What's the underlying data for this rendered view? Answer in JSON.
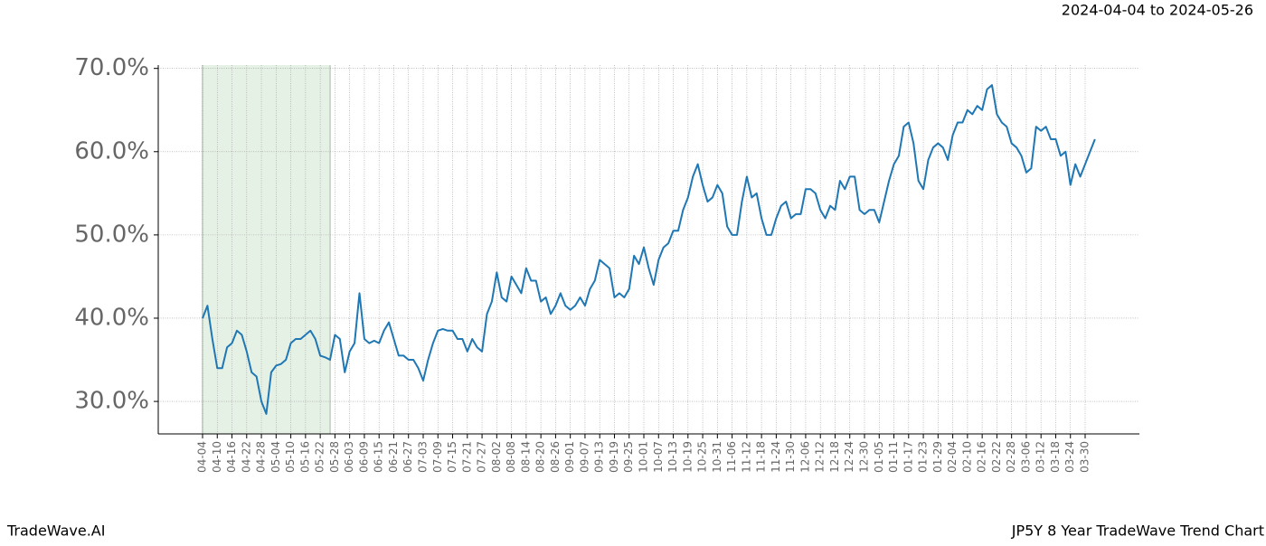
{
  "header": {
    "date_range": "2024-04-04 to 2024-05-26"
  },
  "footer": {
    "brand": "TradeWave.AI",
    "chart_name": "JP5Y 8 Year TradeWave Trend Chart"
  },
  "chart_data": {
    "type": "line",
    "categories": [
      "04-04",
      null,
      null,
      "04-10",
      null,
      null,
      "04-16",
      null,
      null,
      "04-22",
      null,
      null,
      "04-28",
      null,
      null,
      "05-04",
      null,
      null,
      "05-10",
      null,
      null,
      "05-16",
      null,
      null,
      "05-22",
      null,
      null,
      "05-28",
      null,
      null,
      "06-03",
      null,
      null,
      "06-09",
      null,
      null,
      "06-15",
      null,
      null,
      "06-21",
      null,
      null,
      "06-27",
      null,
      null,
      "07-03",
      null,
      null,
      "07-09",
      null,
      null,
      "07-15",
      null,
      null,
      "07-21",
      null,
      null,
      "07-27",
      null,
      null,
      "08-02",
      null,
      null,
      "08-08",
      null,
      null,
      "08-14",
      null,
      null,
      "08-20",
      null,
      null,
      "08-26",
      null,
      null,
      "09-01",
      null,
      null,
      "09-07",
      null,
      null,
      "09-13",
      null,
      null,
      "09-19",
      null,
      null,
      "09-25",
      null,
      null,
      "10-01",
      null,
      null,
      "10-07",
      null,
      null,
      "10-13",
      null,
      null,
      "10-19",
      null,
      null,
      "10-25",
      null,
      null,
      "10-31",
      null,
      null,
      "11-06",
      null,
      null,
      "11-12",
      null,
      null,
      "11-18",
      null,
      null,
      "11-24",
      null,
      null,
      "11-30",
      null,
      null,
      "12-06",
      null,
      null,
      "12-12",
      null,
      null,
      "12-18",
      null,
      null,
      "12-24",
      null,
      null,
      "12-30",
      null,
      null,
      "01-05",
      null,
      null,
      "01-11",
      null,
      null,
      "01-17",
      null,
      null,
      "01-23",
      null,
      null,
      "01-29",
      null,
      null,
      "02-04",
      null,
      null,
      "02-10",
      null,
      null,
      "02-16",
      null,
      null,
      "02-22",
      null,
      null,
      "02-28",
      null,
      null,
      "03-06",
      null,
      null,
      "03-12",
      null,
      null,
      "03-18",
      null,
      null,
      "03-24",
      null,
      null,
      "03-30",
      null,
      null
    ],
    "series": [
      {
        "color": "#1f77b4",
        "values": [
          40,
          41.5,
          37.5,
          34,
          34,
          36.5,
          37,
          38.5,
          38,
          36,
          33.5,
          33,
          30,
          28.5,
          33.5,
          34.3,
          34.5,
          35,
          37,
          37.5,
          37.5,
          38,
          38.5,
          37.5,
          35.5,
          35.3,
          35,
          38,
          37.5,
          33.5,
          36,
          37,
          43,
          37.5,
          37,
          37.3,
          37,
          38.5,
          39.5,
          37.5,
          35.5,
          35.5,
          35,
          35,
          34,
          32.5,
          35,
          37,
          38.5,
          38.7,
          38.5,
          38.5,
          37.5,
          37.5,
          36,
          37.5,
          36.5,
          36,
          40.5,
          42,
          45.5,
          42.5,
          42,
          45,
          44,
          43,
          46,
          44.5,
          44.5,
          42,
          42.5,
          40.5,
          41.5,
          43,
          41.5,
          41,
          41.5,
          42.5,
          41.5,
          43.5,
          44.5,
          47,
          46.5,
          46,
          42.5,
          43,
          42.5,
          43.5,
          47.5,
          46.5,
          48.5,
          46,
          44,
          47,
          48.5,
          49,
          50.5,
          50.5,
          53,
          54.5,
          57,
          58.5,
          56,
          54,
          54.5,
          56,
          55,
          51,
          50,
          50,
          54,
          57,
          54.5,
          55,
          52,
          50,
          50,
          52,
          53.5,
          54,
          52,
          52.5,
          52.5,
          55.5,
          55.5,
          55,
          53,
          52,
          53.5,
          53,
          56.5,
          55.5,
          57,
          57,
          53,
          52.5,
          53,
          53,
          51.5,
          54,
          56.5,
          58.5,
          59.5,
          63,
          63.5,
          61,
          56.5,
          55.5,
          59,
          60.5,
          61,
          60.5,
          59,
          62,
          63.5,
          63.5,
          65,
          64.5,
          65.5,
          65,
          67.5,
          68,
          64.5,
          63.5,
          63,
          61,
          60.5,
          59.5,
          57.5,
          58,
          63,
          62.5,
          63,
          61.5,
          61.5,
          59.5,
          60,
          56,
          58.5,
          57,
          58.5,
          60,
          61.5
        ]
      }
    ],
    "ylim": [
      26.1,
      70.4
    ],
    "yticks": [
      {
        "value": 30,
        "label": "30.0%"
      },
      {
        "value": 40,
        "label": "40.0%"
      },
      {
        "value": 50,
        "label": "50.0%"
      },
      {
        "value": 60,
        "label": "60.0%"
      },
      {
        "value": 70,
        "label": "70.0%"
      }
    ],
    "grid": true,
    "shaded_range": [
      0,
      26
    ],
    "shade_color": "#e6f1e6"
  }
}
